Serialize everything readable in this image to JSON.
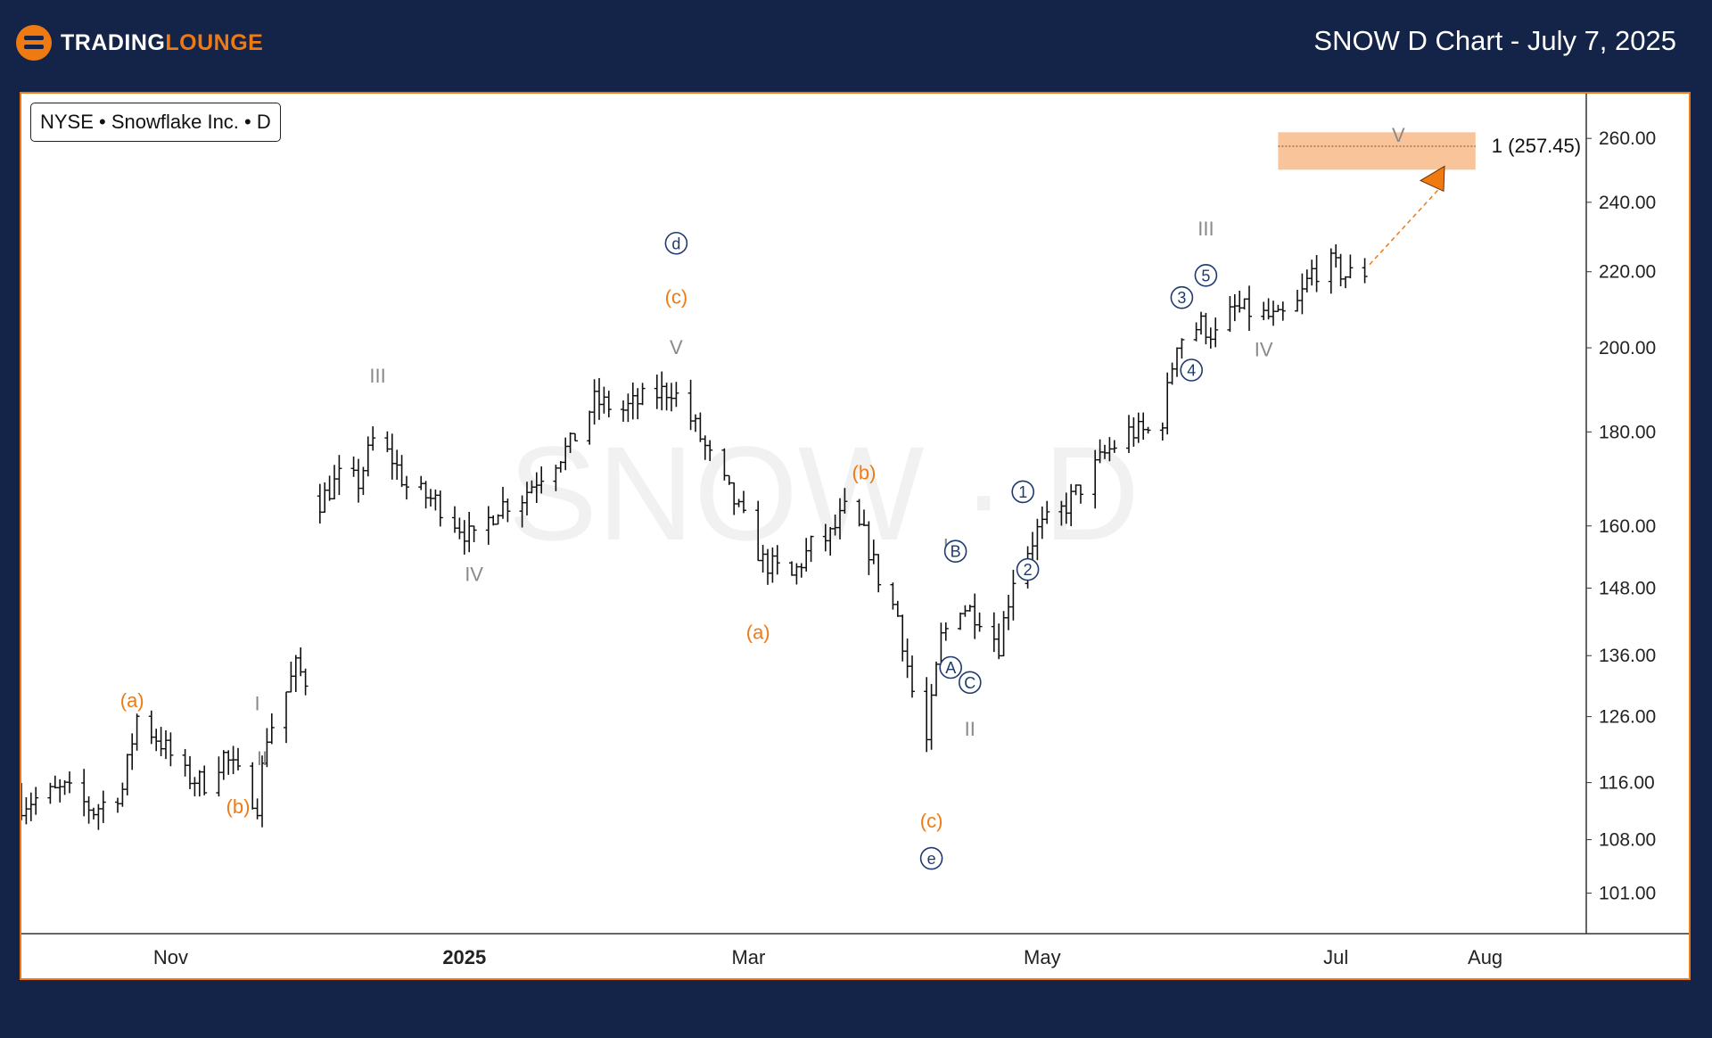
{
  "header": {
    "logo_part1": "TRADING",
    "logo_part2": "LOUNGE",
    "title": "SNOW D Chart - July 7, 2025"
  },
  "symbol": {
    "label": "NYSE • Snowflake Inc. • D"
  },
  "watermark": "SNOW · D",
  "colors": {
    "background": "#142448",
    "accent": "#f07a12",
    "wave_gray": "#8a8a8a",
    "wave_navy": "#1e3a6e",
    "target_zone": "#f9c49a"
  },
  "chart_data": {
    "type": "ohlc",
    "title": "SNOW D Chart - July 7, 2025",
    "y_ticks": [
      101,
      108,
      116,
      126,
      136,
      148,
      160,
      180,
      200,
      220,
      240,
      260
    ],
    "y_tick_labels": [
      "101.00",
      "108.00",
      "116.00",
      "126.00",
      "136.00",
      "148.00",
      "160.00",
      "180.00",
      "200.00",
      "220.00",
      "240.00",
      "260.00"
    ],
    "y_scale": "log",
    "ylim": [
      96,
      275
    ],
    "x_ticks": [
      {
        "label": "Nov",
        "date": "2024-11-01"
      },
      {
        "label": "2025",
        "date": "2025-01-01",
        "bold": true
      },
      {
        "label": "Mar",
        "date": "2025-03-01"
      },
      {
        "label": "May",
        "date": "2025-05-01"
      },
      {
        "label": "Jul",
        "date": "2025-07-01"
      },
      {
        "label": "Aug",
        "date": "2025-08-01"
      }
    ],
    "xlim": [
      "2024-10-01",
      "2025-08-22"
    ],
    "price_path": [
      [
        "2024-10-01",
        113
      ],
      [
        "2024-10-10",
        115
      ],
      [
        "2024-10-16",
        112
      ],
      [
        "2024-10-22",
        115
      ],
      [
        "2024-10-25",
        126
      ],
      [
        "2024-10-30",
        122
      ],
      [
        "2024-11-04",
        117
      ],
      [
        "2024-11-08",
        116
      ],
      [
        "2024-11-12",
        120
      ],
      [
        "2024-11-15",
        117
      ],
      [
        "2024-11-19",
        113
      ],
      [
        "2024-11-21",
        123
      ],
      [
        "2024-11-25",
        130
      ],
      [
        "2024-11-27",
        134
      ],
      [
        "2024-11-30",
        131
      ],
      [
        "2024-12-02",
        165
      ],
      [
        "2024-12-06",
        170
      ],
      [
        "2024-12-10",
        169
      ],
      [
        "2024-12-13",
        178
      ],
      [
        "2024-12-17",
        174
      ],
      [
        "2024-12-20",
        168
      ],
      [
        "2024-12-26",
        165
      ],
      [
        "2025-01-03",
        157
      ],
      [
        "2025-01-08",
        164
      ],
      [
        "2025-01-13",
        166
      ],
      [
        "2025-01-17",
        171
      ],
      [
        "2025-01-23",
        177
      ],
      [
        "2025-01-28",
        187
      ],
      [
        "2025-02-03",
        185
      ],
      [
        "2025-02-08",
        188
      ],
      [
        "2025-02-13",
        190
      ],
      [
        "2025-02-18",
        181
      ],
      [
        "2025-02-22",
        172
      ],
      [
        "2025-02-26",
        165
      ],
      [
        "2025-03-04",
        153
      ],
      [
        "2025-03-10",
        150
      ],
      [
        "2025-03-14",
        156
      ],
      [
        "2025-03-18",
        158
      ],
      [
        "2025-03-21",
        163
      ],
      [
        "2025-03-25",
        158
      ],
      [
        "2025-03-28",
        150
      ],
      [
        "2025-04-01",
        143
      ],
      [
        "2025-04-04",
        130
      ],
      [
        "2025-04-07",
        122
      ],
      [
        "2025-04-10",
        139
      ],
      [
        "2025-04-14",
        145
      ],
      [
        "2025-04-18",
        143
      ],
      [
        "2025-04-22",
        138
      ],
      [
        "2025-04-25",
        150
      ],
      [
        "2025-04-30",
        159
      ],
      [
        "2025-05-05",
        163
      ],
      [
        "2025-05-09",
        168
      ],
      [
        "2025-05-14",
        175
      ],
      [
        "2025-05-19",
        180
      ],
      [
        "2025-05-23",
        180
      ],
      [
        "2025-05-26",
        183
      ],
      [
        "2025-05-29",
        202
      ],
      [
        "2025-06-03",
        206
      ],
      [
        "2025-06-06",
        203
      ],
      [
        "2025-06-10",
        210
      ],
      [
        "2025-06-14",
        209
      ],
      [
        "2025-06-19",
        207
      ],
      [
        "2025-06-23",
        211
      ],
      [
        "2025-06-26",
        220
      ],
      [
        "2025-06-30",
        222
      ],
      [
        "2025-07-03",
        219
      ],
      [
        "2025-07-07",
        220
      ]
    ],
    "target": {
      "label": "1 (257.45)",
      "value": 257.45,
      "zone": [
        250,
        262
      ],
      "date_range": [
        "2025-06-19",
        "2025-07-30"
      ]
    },
    "projection_arrow": {
      "from": [
        "2025-07-08",
        222
      ],
      "to": [
        "2025-07-23",
        245
      ]
    },
    "annotations": [
      {
        "text": "(a)",
        "date": "2024-10-24",
        "price": 128.5,
        "color": "orange"
      },
      {
        "text": "(b)",
        "date": "2024-11-15",
        "price": 112.5,
        "color": "orange"
      },
      {
        "text": "I",
        "date": "2024-11-19",
        "price": 128,
        "color": "gray"
      },
      {
        "text": "II",
        "date": "2024-11-20",
        "price": 119.5,
        "color": "gray"
      },
      {
        "text": "III",
        "date": "2024-12-14",
        "price": 193,
        "color": "gray"
      },
      {
        "text": "IV",
        "date": "2025-01-03",
        "price": 150.5,
        "color": "gray"
      },
      {
        "text": "d",
        "date": "2025-02-14",
        "price": 228,
        "color": "navy",
        "circled": true
      },
      {
        "text": "(c)",
        "date": "2025-02-14",
        "price": 213,
        "color": "orange"
      },
      {
        "text": "V",
        "date": "2025-02-14",
        "price": 200,
        "color": "gray"
      },
      {
        "text": "(a)",
        "date": "2025-03-03",
        "price": 140,
        "color": "orange"
      },
      {
        "text": "(b)",
        "date": "2025-03-25",
        "price": 171,
        "color": "orange"
      },
      {
        "text": "I",
        "date": "2025-04-11",
        "price": 156,
        "color": "gray"
      },
      {
        "text": "B",
        "date": "2025-04-13",
        "price": 155,
        "color": "navy",
        "circled": true
      },
      {
        "text": "A",
        "date": "2025-04-12",
        "price": 134,
        "color": "navy",
        "circled": true
      },
      {
        "text": "C",
        "date": "2025-04-16",
        "price": 131.5,
        "color": "navy",
        "circled": true
      },
      {
        "text": "II",
        "date": "2025-04-16",
        "price": 124,
        "color": "gray"
      },
      {
        "text": "(c)",
        "date": "2025-04-08",
        "price": 110.5,
        "color": "orange"
      },
      {
        "text": "e",
        "date": "2025-04-08",
        "price": 105.5,
        "color": "navy",
        "circled": true
      },
      {
        "text": "1",
        "date": "2025-04-27",
        "price": 167,
        "color": "navy",
        "circled": true
      },
      {
        "text": "2",
        "date": "2025-04-28",
        "price": 151.5,
        "color": "navy",
        "circled": true
      },
      {
        "text": "3",
        "date": "2025-05-30",
        "price": 213,
        "color": "navy",
        "circled": true
      },
      {
        "text": "5",
        "date": "2025-06-04",
        "price": 219,
        "color": "navy",
        "circled": true
      },
      {
        "text": "III",
        "date": "2025-06-04",
        "price": 232,
        "color": "gray"
      },
      {
        "text": "4",
        "date": "2025-06-01",
        "price": 194.5,
        "color": "navy",
        "circled": true
      },
      {
        "text": "IV",
        "date": "2025-06-16",
        "price": 199.5,
        "color": "gray"
      },
      {
        "text": "V",
        "date": "2025-07-14",
        "price": 261,
        "color": "gray"
      }
    ]
  }
}
